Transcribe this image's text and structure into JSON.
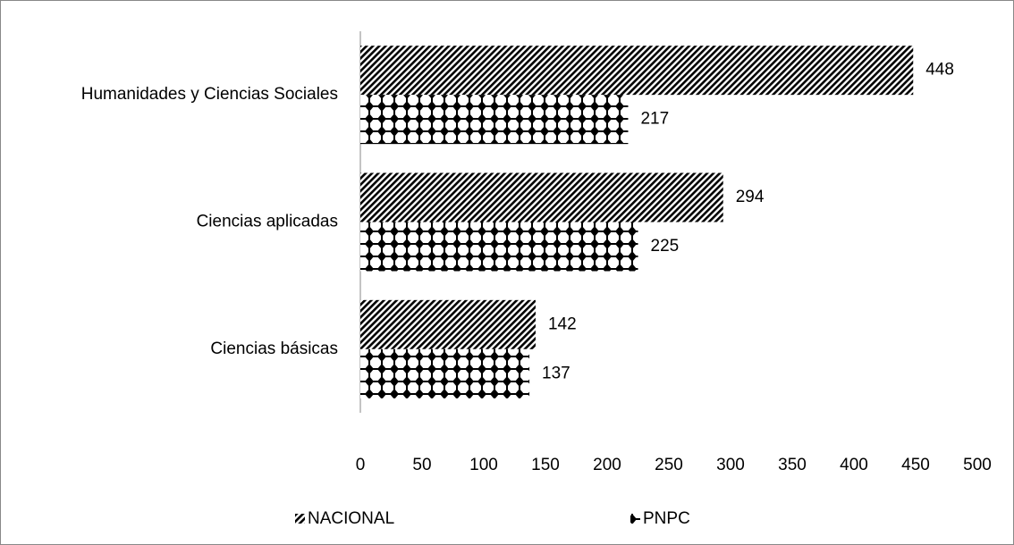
{
  "chart_data": {
    "type": "hbar",
    "categories": [
      "Humanidades y Ciencias Sociales",
      "Ciencias aplicadas",
      "Ciencias básicas"
    ],
    "series": [
      {
        "name": "NACIONAL",
        "color": "#000000",
        "pattern": "diagonal",
        "values": [
          448,
          294,
          142
        ]
      },
      {
        "name": "PNPC",
        "color": "#000000",
        "pattern": "dots",
        "values": [
          217,
          225,
          137
        ]
      }
    ],
    "xlim": [
      0,
      500
    ],
    "xticks": [
      0,
      50,
      100,
      150,
      200,
      250,
      300,
      350,
      400,
      450,
      500
    ],
    "grid": false,
    "legend": "bottom"
  }
}
